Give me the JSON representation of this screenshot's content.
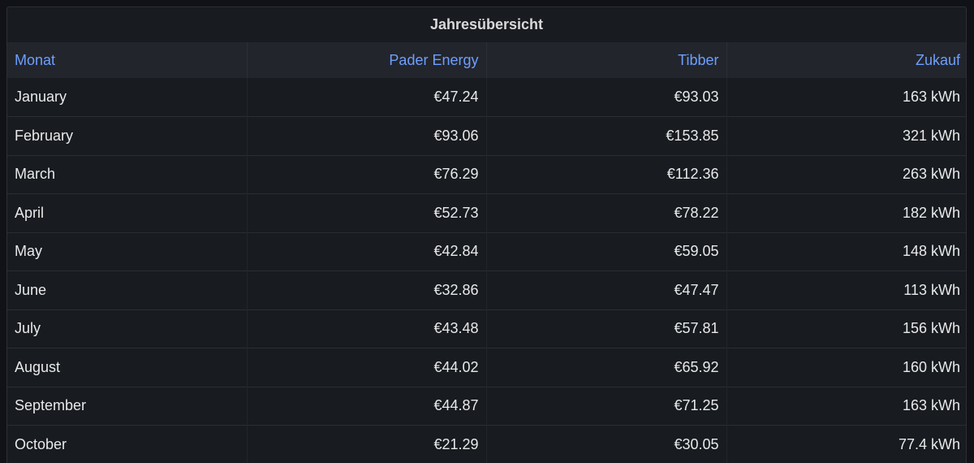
{
  "panel": {
    "title": "Jahresübersicht"
  },
  "table": {
    "columns": [
      "Monat",
      "Pader Energy",
      "Tibber",
      "Zukauf"
    ],
    "rows": [
      [
        "January",
        "€47.24",
        "€93.03",
        "163 kWh"
      ],
      [
        "February",
        "€93.06",
        "€153.85",
        "321 kWh"
      ],
      [
        "March",
        "€76.29",
        "€112.36",
        "263 kWh"
      ],
      [
        "April",
        "€52.73",
        "€78.22",
        "182 kWh"
      ],
      [
        "May",
        "€42.84",
        "€59.05",
        "148 kWh"
      ],
      [
        "June",
        "€32.86",
        "€47.47",
        "113 kWh"
      ],
      [
        "July",
        "€43.48",
        "€57.81",
        "156 kWh"
      ],
      [
        "August",
        "€44.02",
        "€65.92",
        "160 kWh"
      ],
      [
        "September",
        "€44.87",
        "€71.25",
        "163 kWh"
      ],
      [
        "October",
        "€21.29",
        "€30.05",
        "77.4 kWh"
      ]
    ]
  },
  "colors": {
    "background": "#111217",
    "panel": "#181b1f",
    "header_row": "#22252b",
    "header_text": "#6e9fff",
    "cell_text": "#e8e9ea"
  }
}
